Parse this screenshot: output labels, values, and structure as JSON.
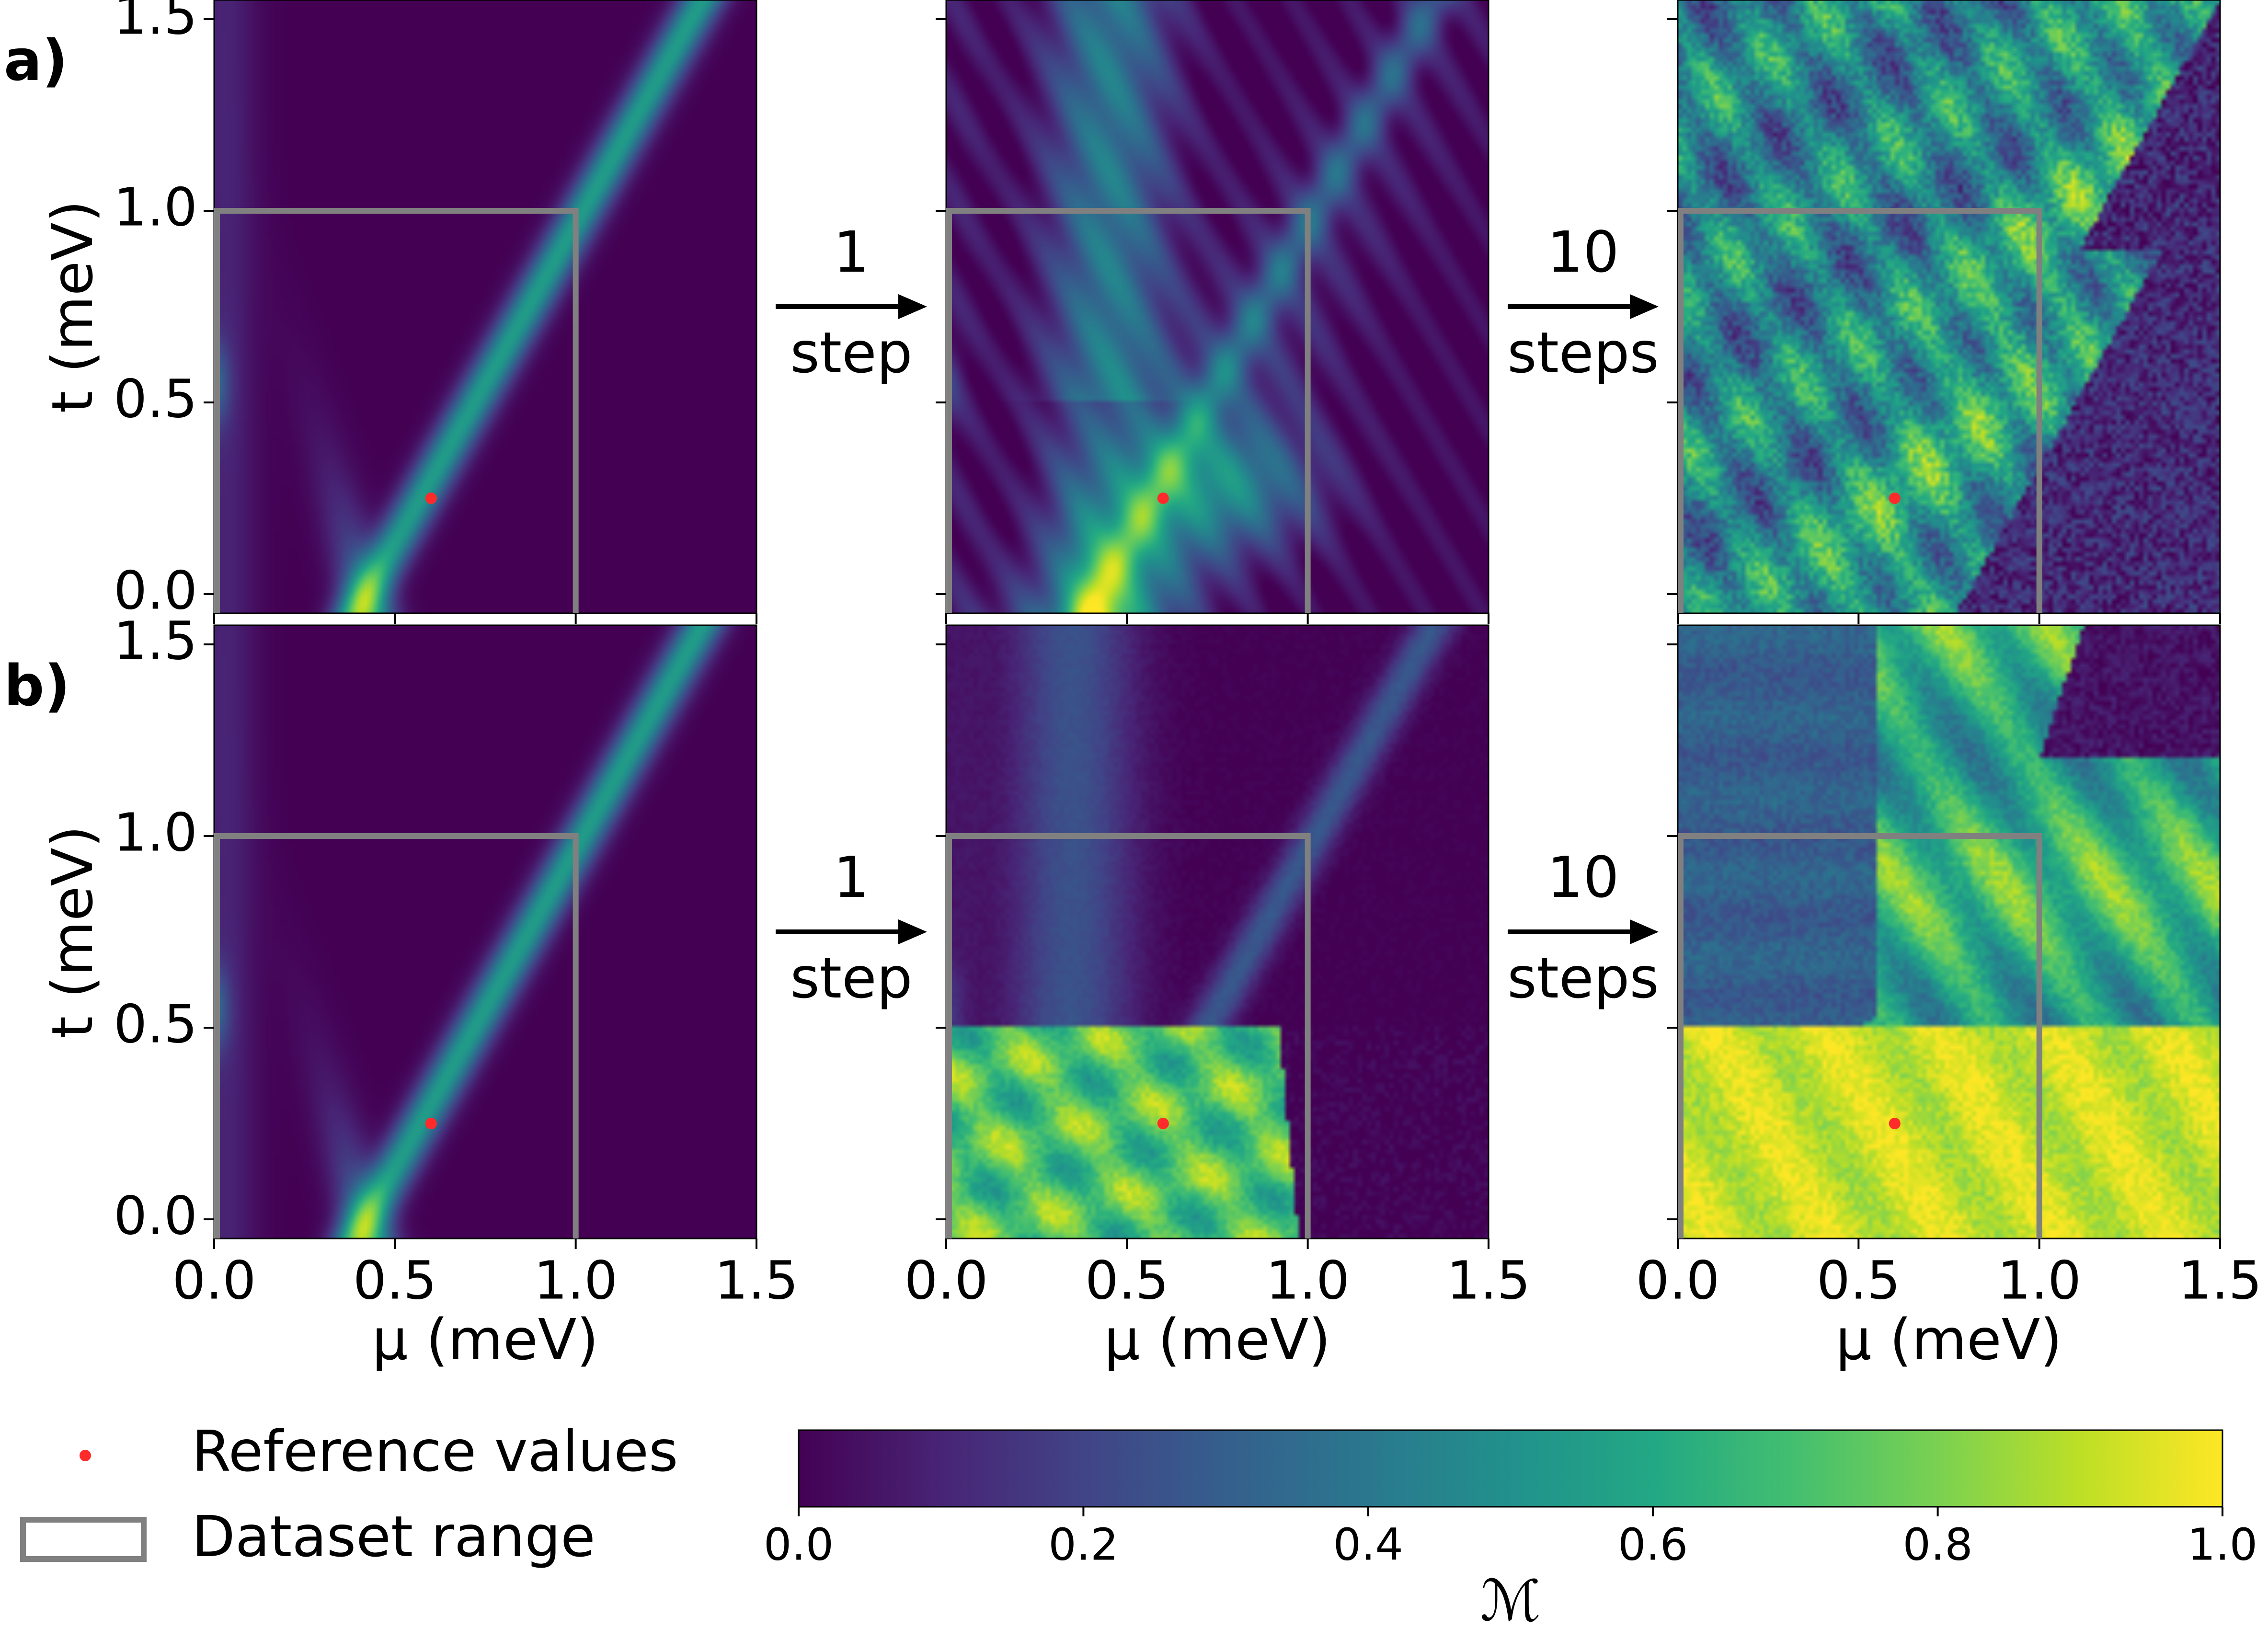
{
  "chart_data": {
    "type": "heatmap",
    "panel_labels": [
      "a)",
      "b)"
    ],
    "rows": [
      {
        "label": "a)",
        "panels": [
          {
            "pattern": "base"
          },
          {
            "pattern": "a1"
          },
          {
            "pattern": "a10"
          }
        ],
        "arrows": [
          {
            "number": "1",
            "unit": "step"
          },
          {
            "number": "10",
            "unit": "steps"
          }
        ]
      },
      {
        "label": "b)",
        "panels": [
          {
            "pattern": "base"
          },
          {
            "pattern": "b1"
          },
          {
            "pattern": "b10"
          }
        ],
        "arrows": [
          {
            "number": "1",
            "unit": "step"
          },
          {
            "number": "10",
            "unit": "steps"
          }
        ]
      }
    ],
    "xlim": [
      0.0,
      1.5
    ],
    "ylim": [
      -0.05,
      1.55
    ],
    "xticks": [
      0.0,
      0.5,
      1.0,
      1.5
    ],
    "xtick_labels": [
      "0.0",
      "0.5",
      "1.0",
      "1.5"
    ],
    "yticks": [
      0.0,
      0.5,
      1.0,
      1.5
    ],
    "ytick_labels": [
      "0.0",
      "0.5",
      "1.0",
      "1.5"
    ],
    "xlabel": "μ (meV)",
    "ylabel": "t (meV)",
    "reference_point": {
      "mu": 0.6,
      "t": 0.25,
      "color": "#ff2a2a"
    },
    "dataset_range": {
      "mu": [
        0.0,
        1.0
      ],
      "t": [
        -0.05,
        1.0
      ],
      "color": "#808080"
    },
    "colorbar": {
      "label": "ℳ",
      "range": [
        0.0,
        1.0
      ],
      "ticks": [
        0.0,
        0.2,
        0.4,
        0.6,
        0.8,
        1.0
      ],
      "tick_labels": [
        "0.0",
        "0.2",
        "0.4",
        "0.6",
        "0.8",
        "1.0"
      ],
      "colormap": "viridis"
    },
    "legend": [
      {
        "text": "Reference values",
        "marker": "red-dot"
      },
      {
        "text": "Dataset range",
        "marker": "gray-rectangle"
      }
    ]
  }
}
